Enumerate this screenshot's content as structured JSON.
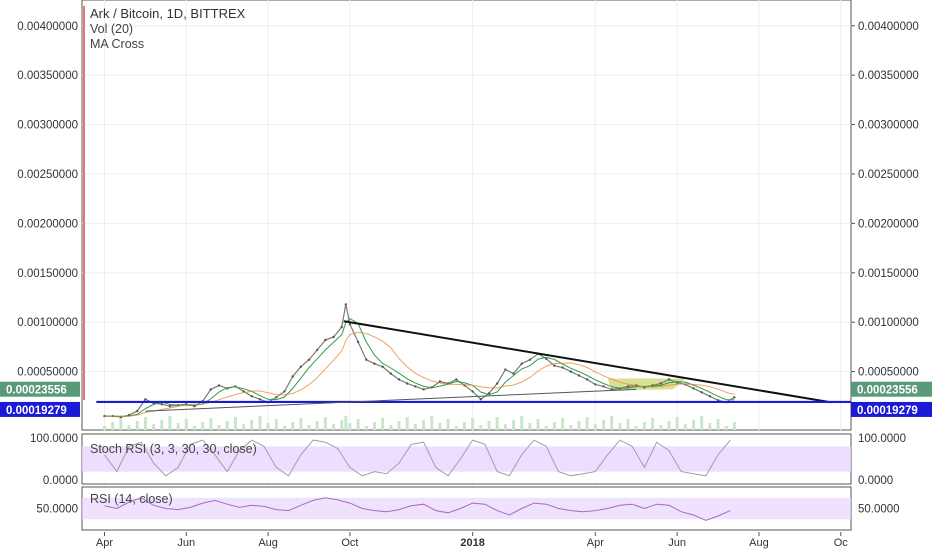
{
  "chart_data": {
    "type": "line",
    "title": "Ark / Bitcoin, 1D, BITTREX",
    "indicators": [
      "Vol (20)",
      "MA Cross"
    ],
    "price_axis": {
      "ylim": [
        0,
        0.0042
      ],
      "ticks": [
        "0.00400000",
        "0.00350000",
        "0.00300000",
        "0.00250000",
        "0.00200000",
        "0.00150000",
        "0.00100000",
        "0.00050000"
      ]
    },
    "x_ticks": [
      "Apr",
      "Jun",
      "Aug",
      "Oct",
      "2018",
      "Apr",
      "Jun",
      "Aug",
      "Oc"
    ],
    "x_ticks_bold": [
      false,
      false,
      false,
      false,
      true,
      false,
      false,
      false,
      false
    ],
    "x_tick_months": [
      0,
      2,
      4,
      6,
      9,
      12,
      14,
      16,
      18
    ],
    "x_range_months": [
      -0.55,
      18.25
    ],
    "series": [
      {
        "x": [
          0.0,
          0.2,
          0.4,
          0.6,
          0.8,
          1.0,
          1.2,
          1.4,
          1.6,
          1.8,
          2.0,
          2.2,
          2.4,
          2.6,
          2.8,
          3.0,
          3.2,
          3.4,
          3.6,
          3.8,
          4.0,
          4.2,
          4.4,
          4.6,
          4.8,
          5.0,
          5.2,
          5.4,
          5.6,
          5.8,
          5.9,
          6.0,
          6.2,
          6.4,
          6.6,
          6.8,
          7.0,
          7.2,
          7.4,
          7.6,
          7.8,
          8.0,
          8.2,
          8.4,
          8.6,
          8.8,
          9.0,
          9.2,
          9.4,
          9.6,
          9.8,
          10.0,
          10.2,
          10.4,
          10.6,
          10.8,
          11.0,
          11.2,
          11.4,
          11.6,
          11.8,
          12.0,
          12.2,
          12.4,
          12.6,
          12.8,
          13.0,
          13.2,
          13.4,
          13.6,
          13.8,
          14.0,
          14.2,
          14.4,
          14.6,
          14.8,
          15.0,
          15.2,
          15.4
        ],
        "values": [
          5e-05,
          5e-05,
          4e-05,
          6e-05,
          0.0001,
          0.00022,
          0.00018,
          0.00017,
          0.00015,
          0.00016,
          0.00017,
          0.00015,
          0.0002,
          0.00032,
          0.00036,
          0.00033,
          0.00035,
          0.0003,
          0.00025,
          0.00022,
          0.00019,
          0.00024,
          0.0003,
          0.00045,
          0.00055,
          0.00062,
          0.00072,
          0.00082,
          0.00085,
          0.00095,
          0.00118,
          0.00098,
          0.0008,
          0.00062,
          0.00058,
          0.00055,
          0.00048,
          0.00042,
          0.00038,
          0.00035,
          0.00032,
          0.00034,
          0.0004,
          0.00038,
          0.00042,
          0.00036,
          0.0003,
          0.00022,
          0.00028,
          0.00038,
          0.00052,
          0.00048,
          0.00058,
          0.00062,
          0.00068,
          0.00063,
          0.00056,
          0.00054,
          0.0005,
          0.00046,
          0.00042,
          0.00037,
          0.00035,
          0.00032,
          0.00033,
          0.00035,
          0.00036,
          0.00034,
          0.00036,
          0.00038,
          0.00042,
          0.00039,
          0.00037,
          0.00033,
          0.00029,
          0.00025,
          0.00021,
          0.00019,
          0.00024
        ]
      }
    ],
    "price_tags": [
      {
        "value": 0.00023556,
        "label": "0.00023556",
        "color": "#5b9a78"
      },
      {
        "value": 0.00019279,
        "label": "0.00019279",
        "color": "#1b1bd6"
      }
    ],
    "trendlines": [
      {
        "x1": 5.85,
        "y1": 0.00101,
        "x2": 17.75,
        "y2": 0.00019,
        "color": "#111111"
      },
      {
        "x1": -0.2,
        "y1": 0.00019279,
        "x2": 18.25,
        "y2": 0.00019279,
        "color": "#1b1bd6"
      }
    ],
    "stoch_rsi": {
      "label": "Stoch RSI (3, 3, 30, 30, close)",
      "ylim": [
        0,
        100
      ],
      "ticks": [
        "100.0000",
        "0.0000"
      ],
      "band": [
        20,
        80
      ],
      "x": [
        0.0,
        0.3,
        0.6,
        0.9,
        1.2,
        1.5,
        1.8,
        2.1,
        2.4,
        2.7,
        3.0,
        3.3,
        3.6,
        3.9,
        4.2,
        4.5,
        4.8,
        5.1,
        5.4,
        5.7,
        6.0,
        6.3,
        6.6,
        6.9,
        7.2,
        7.5,
        7.8,
        8.1,
        8.4,
        8.7,
        9.0,
        9.3,
        9.6,
        9.9,
        10.2,
        10.5,
        10.8,
        11.1,
        11.4,
        11.7,
        12.0,
        12.3,
        12.6,
        12.9,
        13.2,
        13.5,
        13.8,
        14.1,
        14.4,
        14.7,
        15.0,
        15.3
      ],
      "values": [
        60,
        20,
        80,
        90,
        40,
        10,
        30,
        85,
        95,
        60,
        20,
        70,
        95,
        80,
        30,
        10,
        60,
        95,
        90,
        75,
        30,
        10,
        20,
        15,
        40,
        85,
        90,
        30,
        10,
        50,
        95,
        85,
        20,
        10,
        60,
        95,
        80,
        20,
        10,
        15,
        20,
        60,
        95,
        80,
        30,
        90,
        70,
        20,
        15,
        10,
        60,
        95
      ]
    },
    "rsi": {
      "label": "RSI (14, close)",
      "ylim": [
        10,
        90
      ],
      "ticks": [
        "50.0000"
      ],
      "band": [
        30,
        70
      ],
      "x": [
        0.0,
        0.3,
        0.6,
        0.9,
        1.2,
        1.5,
        1.8,
        2.1,
        2.4,
        2.7,
        3.0,
        3.3,
        3.6,
        3.9,
        4.2,
        4.5,
        4.8,
        5.1,
        5.4,
        5.7,
        6.0,
        6.3,
        6.6,
        6.9,
        7.2,
        7.5,
        7.8,
        8.1,
        8.4,
        8.7,
        9.0,
        9.3,
        9.6,
        9.9,
        10.2,
        10.5,
        10.8,
        11.1,
        11.4,
        11.7,
        12.0,
        12.3,
        12.6,
        12.9,
        13.2,
        13.5,
        13.8,
        14.1,
        14.4,
        14.7,
        15.0,
        15.3
      ],
      "values": [
        55,
        50,
        62,
        70,
        56,
        50,
        48,
        52,
        60,
        65,
        58,
        52,
        56,
        54,
        48,
        46,
        56,
        65,
        70,
        66,
        60,
        50,
        46,
        44,
        48,
        55,
        58,
        46,
        42,
        50,
        60,
        58,
        46,
        38,
        50,
        60,
        58,
        50,
        46,
        44,
        46,
        50,
        56,
        58,
        50,
        58,
        56,
        44,
        38,
        28,
        36,
        46
      ]
    },
    "colors": {
      "price_line": "#7a7a7a",
      "ma_fast": "#2f9e44",
      "ma_slow": "#e67e22",
      "pane_border": "#555555",
      "band_fill": "#e9d6ff",
      "stoch_line": "#a0a0a0",
      "rsi_line": "#a56bbf",
      "vol_fill": "#c8e6c9",
      "left_marker": "#d64b4b",
      "triangle_fill": "#c9d36a"
    },
    "grid": true,
    "legend_position": "top-left"
  }
}
